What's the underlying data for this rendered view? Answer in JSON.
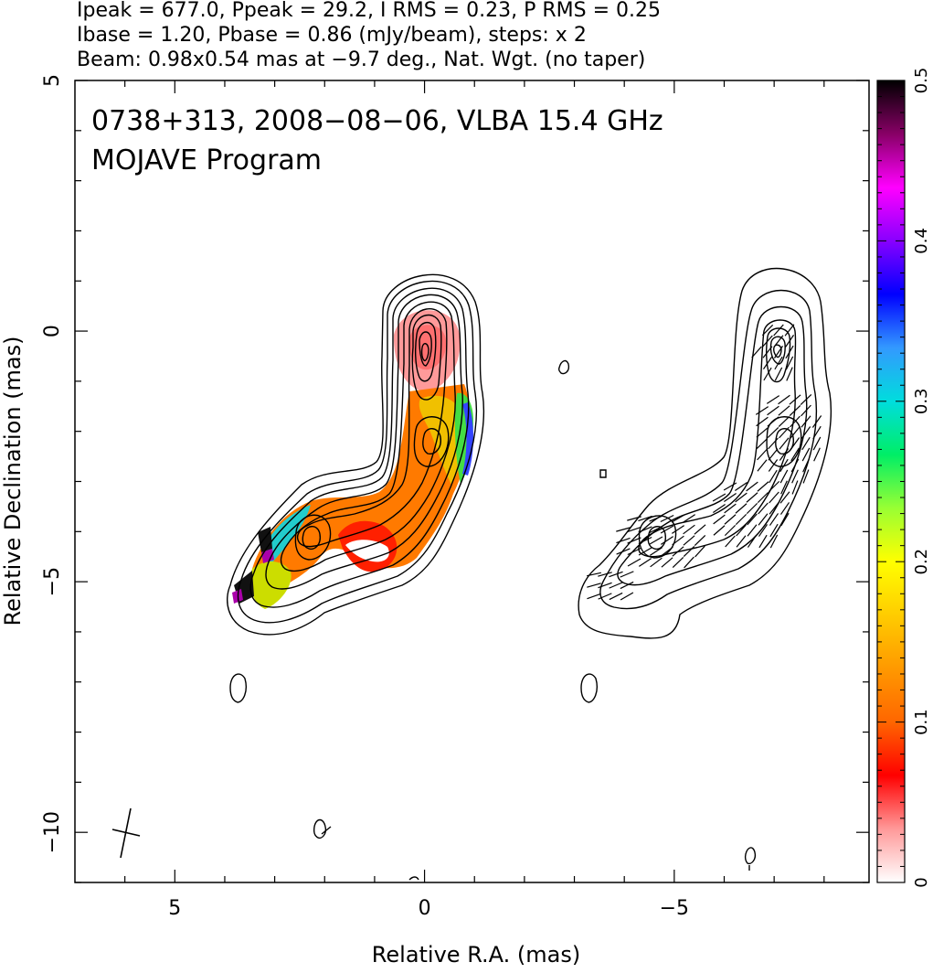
{
  "header": {
    "line1": "Ipeak = 677.0, Ppeak = 29.2, I RMS = 0.23, P RMS = 0.25",
    "line2": "Ibase = 1.20, Pbase = 0.86 (mJy/beam), steps: x 2",
    "line3": "Beam: 0.98x0.54 mas at −9.7 deg., Nat. Wgt. (no taper)"
  },
  "chart_data": {
    "type": "heatmap",
    "title": "0738+313, 2008−08−06, VLBA 15.4 GHz",
    "subtitle": "MOJAVE Program",
    "xlabel": "Relative R.A. (mas)",
    "ylabel": "Relative Declination (mas)",
    "xlim": [
      7.0,
      -8.9
    ],
    "ylim": [
      -11.0,
      5.0
    ],
    "x_ticks": [
      5,
      0,
      -5
    ],
    "x_tick_labels": [
      "5",
      "0",
      "−5"
    ],
    "y_ticks": [
      5,
      0,
      -5,
      -10
    ],
    "y_tick_labels": [
      "5",
      "0",
      "−5",
      "−10"
    ],
    "colorbar": {
      "range": [
        0,
        0.5
      ],
      "ticks": [
        0,
        0.1,
        0.2,
        0.3,
        0.4,
        0.5
      ],
      "tick_labels": [
        "0",
        "0.1",
        "0.2",
        "0.3",
        "0.4",
        "0.5"
      ],
      "colormap": [
        "#ffffff",
        "#ff9999",
        "#ff0000",
        "#ff6600",
        "#ff9900",
        "#ffcc00",
        "#ffff00",
        "#99ff33",
        "#00ee66",
        "#00dddd",
        "#3399ff",
        "#0000ff",
        "#8800ff",
        "#ff00ff",
        "#880066",
        "#000000"
      ]
    },
    "panels": [
      {
        "name": "left",
        "content": "total intensity contours with fractional polarization color overlay",
        "ra_offset": 0
      },
      {
        "name": "right",
        "content": "total intensity contours with EVPA ticks",
        "ra_offset": -7
      }
    ],
    "components": [
      {
        "ra": -0.1,
        "dec": -0.6,
        "frac_pol": 0.06
      },
      {
        "ra": -0.2,
        "dec": -2.3,
        "frac_pol": 0.16
      },
      {
        "ra": 2.3,
        "dec": -4.2,
        "frac_pol": 0.13
      },
      {
        "ra": 0.9,
        "dec": -3.8,
        "frac_pol": 0.1
      }
    ],
    "contour_levels_mJy_per_beam": [
      1.2,
      2.4,
      4.8,
      9.6,
      19.2,
      38.4,
      76.8,
      153.6,
      307.2,
      614.4
    ],
    "beam": {
      "major_mas": 0.98,
      "minor_mas": 0.54,
      "pa_deg": -9.7
    }
  }
}
